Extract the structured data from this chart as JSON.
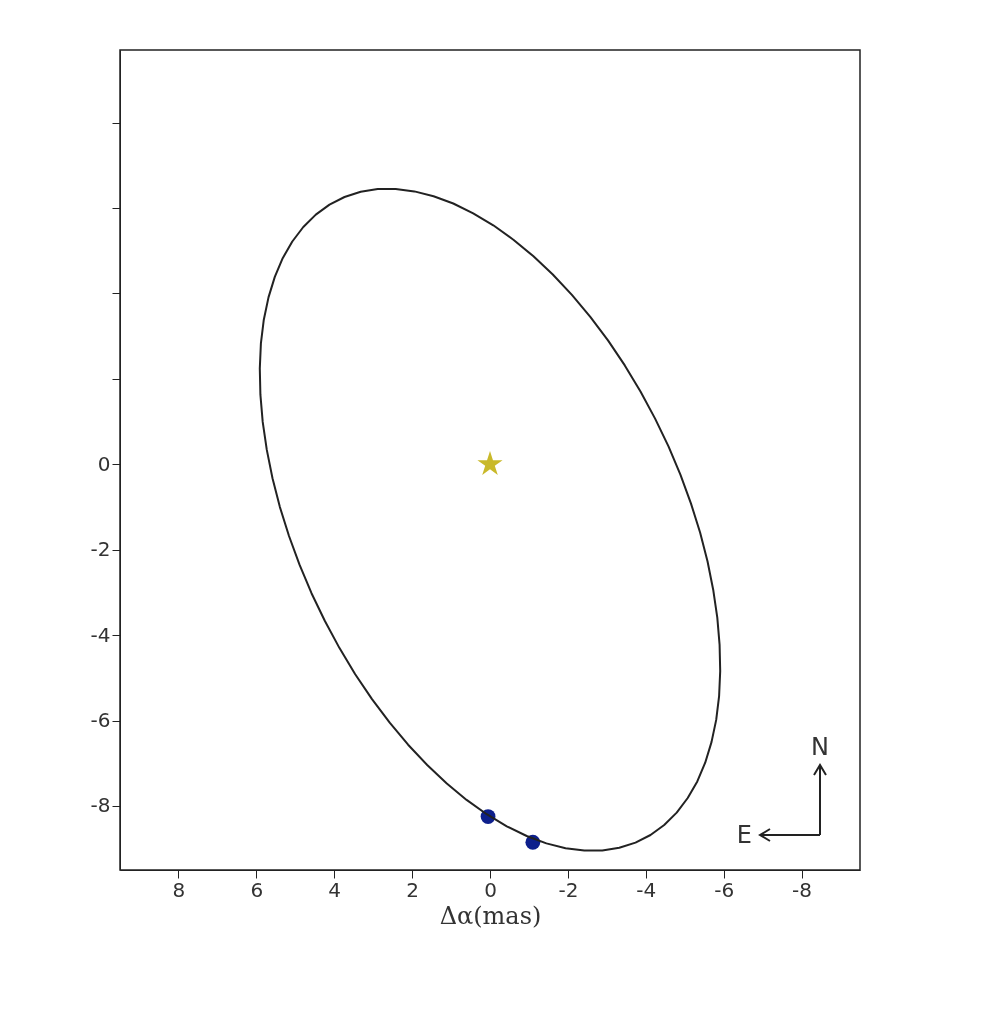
{
  "chart_data": {
    "type": "scatter",
    "xlabel": "Δα(mas)",
    "xlim": [
      9.5,
      -9.5
    ],
    "xticks": [
      8,
      6,
      4,
      2,
      0,
      -2,
      -4,
      -6,
      -8
    ],
    "ylim": [
      -9.5,
      9.7
    ],
    "yticks": [
      {
        "value": 8,
        "label": null
      },
      {
        "value": 6,
        "label": null
      },
      {
        "value": 4,
        "label": null
      },
      {
        "value": 2,
        "label": null
      },
      0,
      -2,
      -4,
      -6,
      -8
    ],
    "grid": false,
    "annotations": [
      "N",
      "E"
    ],
    "series": [
      {
        "marker": "circle",
        "color": "#0d1f8c",
        "x": [
          0.05,
          -1.1
        ],
        "values": [
          -8.25,
          -8.85
        ]
      },
      {
        "marker": "star",
        "color": "#c9b92a",
        "x": [
          0
        ],
        "values": [
          0
        ]
      }
    ]
  }
}
